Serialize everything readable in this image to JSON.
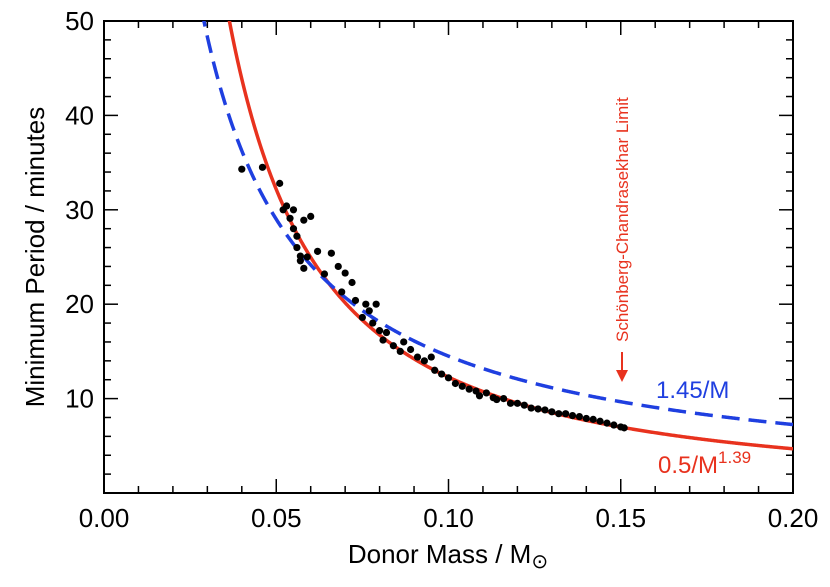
{
  "chart_data": {
    "type": "scatter",
    "xlabel": "Donor Mass / M",
    "xlabel_sub": "⊙",
    "ylabel": "Minimum Period / minutes",
    "xlim": [
      0.0,
      0.2
    ],
    "ylim": [
      0,
      50
    ],
    "x_ticks": [
      "0.00",
      "0.05",
      "0.10",
      "0.15",
      "0.20"
    ],
    "y_ticks": [
      "10",
      "20",
      "30",
      "40",
      "50"
    ],
    "grid": false,
    "series": [
      {
        "name": "data points",
        "kind": "points",
        "color": "#000000",
        "points": [
          [
            0.04,
            34.3
          ],
          [
            0.046,
            34.5
          ],
          [
            0.051,
            32.8
          ],
          [
            0.052,
            30.0
          ],
          [
            0.053,
            30.4
          ],
          [
            0.054,
            29.1
          ],
          [
            0.055,
            30.0
          ],
          [
            0.055,
            28.0
          ],
          [
            0.056,
            27.2
          ],
          [
            0.056,
            26.0
          ],
          [
            0.057,
            25.1
          ],
          [
            0.057,
            24.6
          ],
          [
            0.058,
            28.9
          ],
          [
            0.058,
            23.8
          ],
          [
            0.059,
            25.0
          ],
          [
            0.06,
            29.3
          ],
          [
            0.062,
            25.6
          ],
          [
            0.064,
            23.2
          ],
          [
            0.066,
            25.4
          ],
          [
            0.068,
            24.0
          ],
          [
            0.069,
            21.3
          ],
          [
            0.07,
            23.3
          ],
          [
            0.072,
            22.3
          ],
          [
            0.073,
            20.4
          ],
          [
            0.075,
            18.6
          ],
          [
            0.076,
            20.0
          ],
          [
            0.077,
            19.3
          ],
          [
            0.078,
            18.0
          ],
          [
            0.079,
            20.0
          ],
          [
            0.08,
            17.2
          ],
          [
            0.081,
            16.2
          ],
          [
            0.082,
            17.0
          ],
          [
            0.084,
            15.6
          ],
          [
            0.086,
            15.0
          ],
          [
            0.087,
            16.0
          ],
          [
            0.089,
            15.2
          ],
          [
            0.091,
            14.4
          ],
          [
            0.093,
            14.0
          ],
          [
            0.095,
            14.4
          ],
          [
            0.096,
            13.0
          ],
          [
            0.098,
            12.6
          ],
          [
            0.1,
            12.2
          ],
          [
            0.102,
            11.6
          ],
          [
            0.104,
            11.3
          ],
          [
            0.106,
            11.0
          ],
          [
            0.108,
            10.8
          ],
          [
            0.109,
            10.3
          ],
          [
            0.111,
            10.6
          ],
          [
            0.113,
            10.1
          ],
          [
            0.114,
            9.9
          ],
          [
            0.116,
            10.0
          ],
          [
            0.118,
            9.5
          ],
          [
            0.12,
            9.5
          ],
          [
            0.122,
            9.3
          ],
          [
            0.124,
            9.0
          ],
          [
            0.126,
            8.9
          ],
          [
            0.128,
            8.8
          ],
          [
            0.13,
            8.6
          ],
          [
            0.132,
            8.4
          ],
          [
            0.134,
            8.4
          ],
          [
            0.136,
            8.2
          ],
          [
            0.138,
            8.1
          ],
          [
            0.14,
            7.9
          ],
          [
            0.142,
            7.8
          ],
          [
            0.144,
            7.6
          ],
          [
            0.146,
            7.4
          ],
          [
            0.148,
            7.2
          ],
          [
            0.15,
            7.0
          ],
          [
            0.151,
            6.9
          ]
        ]
      },
      {
        "name": "0.5/M^1.39",
        "kind": "fit",
        "coef": 0.5,
        "exponent": 1.39,
        "color": "#e8321e",
        "dashed": false,
        "label_main": "0.5/M",
        "label_sup": "1.39"
      },
      {
        "name": "1.45/M",
        "kind": "fit",
        "coef": 1.45,
        "exponent": 1.0,
        "color": "#1f3fe0",
        "dashed": true,
        "label_main": "1.45/M",
        "label_sup": ""
      }
    ],
    "annotations": [
      {
        "text": "Schönberg-Chandrasekhar Limit",
        "x": 0.15,
        "color": "#e8321e",
        "arrow": "down"
      }
    ]
  }
}
